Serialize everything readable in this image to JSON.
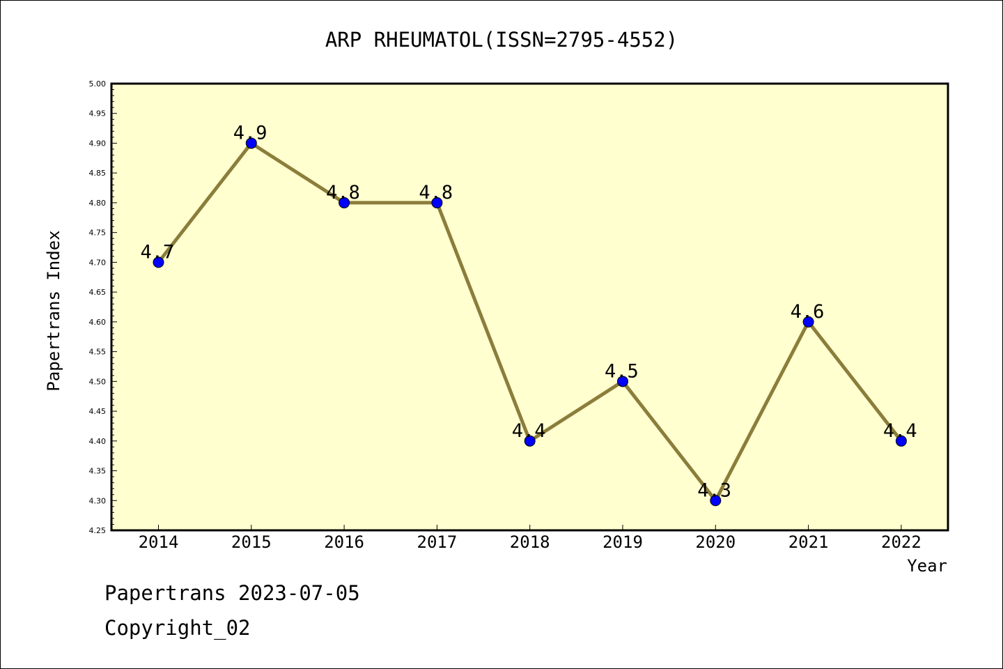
{
  "chart_data": {
    "type": "line",
    "title": "ARP RHEUMATOL(ISSN=2795-4552)",
    "xlabel": "Year",
    "ylabel": "Papertrans Index",
    "categories": [
      "2014",
      "2015",
      "2016",
      "2017",
      "2018",
      "2019",
      "2020",
      "2021",
      "2022"
    ],
    "values": [
      4.7,
      4.9,
      4.8,
      4.8,
      4.4,
      4.5,
      4.3,
      4.6,
      4.4
    ],
    "data_labels": [
      "4.7",
      "4.9",
      "4.8",
      "4.8",
      "4.4",
      "4.5",
      "4.3",
      "4.6",
      "4.4"
    ],
    "ylim": [
      4.25,
      5.0
    ],
    "yticks": [
      "4.25",
      "4.30",
      "4.35",
      "4.40",
      "4.45",
      "4.50",
      "4.55",
      "4.60",
      "4.65",
      "4.70",
      "4.75",
      "4.80",
      "4.85",
      "4.90",
      "4.95",
      "5.00"
    ],
    "grid": false,
    "colors": {
      "plot_background": "#ffffd0",
      "line": "#8b7d3a",
      "marker": "#0000ff"
    }
  },
  "footer": {
    "line1": "Papertrans 2023-07-05",
    "line2": "Copyright_02"
  }
}
